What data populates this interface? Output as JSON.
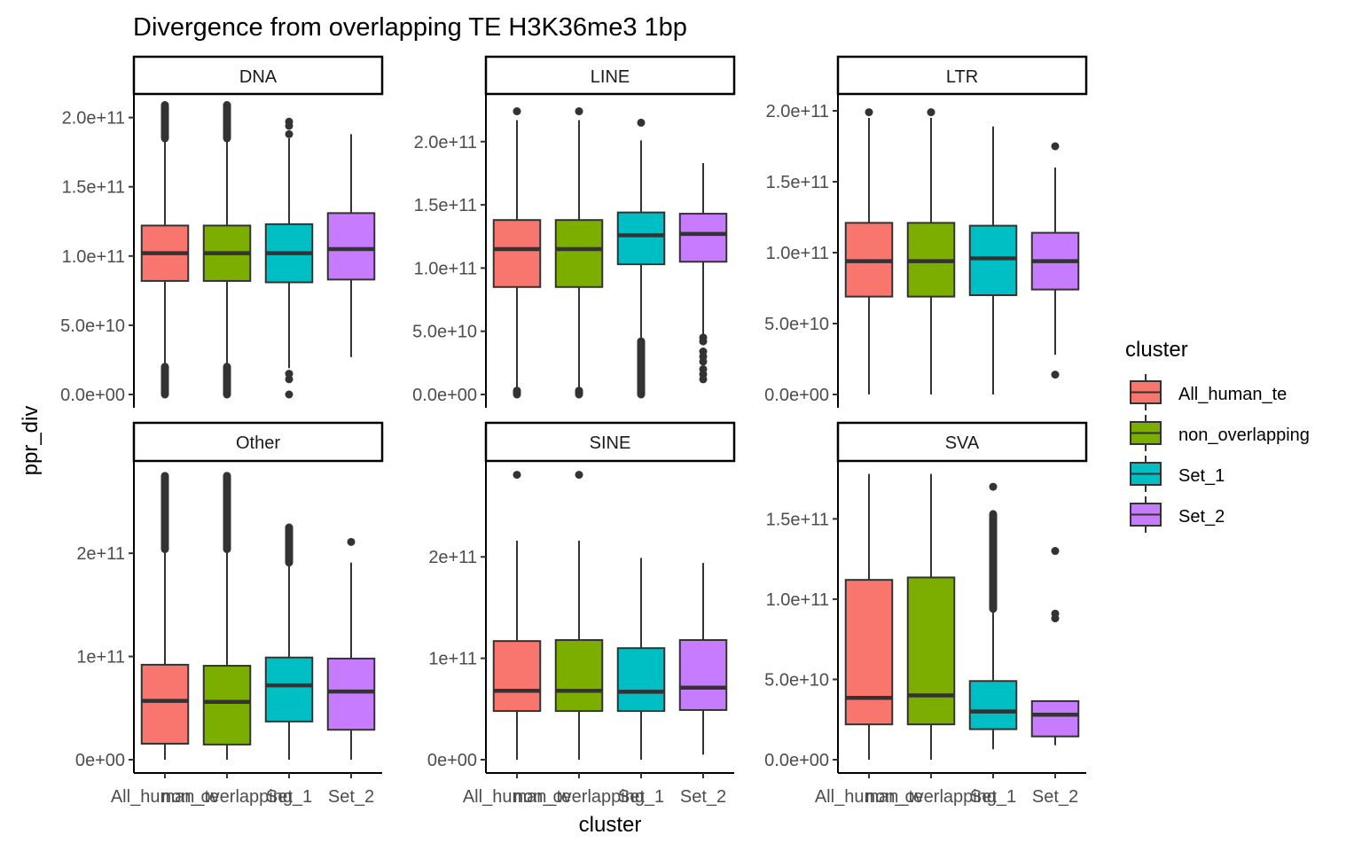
{
  "chart_data": {
    "type": "boxplot",
    "title": "Divergence from overlapping TE H3K36me3 1bp",
    "xlabel": "cluster",
    "ylabel": "ppr_div",
    "categories": [
      "All_human_te",
      "non_overlapping",
      "Set_1",
      "Set_2"
    ],
    "colors": {
      "All_human_te": "#F8766D",
      "non_overlapping": "#7CAE00",
      "Set_1": "#00BFC4",
      "Set_2": "#C77CFF"
    },
    "legend": {
      "title": "cluster",
      "position": "right",
      "items": [
        "All_human_te",
        "non_overlapping",
        "Set_1",
        "Set_2"
      ]
    },
    "grid": false,
    "facets": [
      {
        "name": "DNA",
        "ylim": [
          0,
          210000000000.0
        ],
        "yticks": [
          0,
          50000000000.0,
          100000000000.0,
          150000000000.0,
          200000000000.0
        ],
        "ytick_labels": [
          "0.0e+00",
          "5.0e+10",
          "1.0e+11",
          "1.5e+11",
          "2.0e+11"
        ],
        "boxes": [
          {
            "cat": "All_human_te",
            "lw": 21000000000.0,
            "q1": 82000000000.0,
            "med": 102000000000.0,
            "q3": 122000000000.0,
            "uw": 183000000000.0,
            "out_lo": [
              0,
              20000000000.0
            ],
            "out_hi": [
              185000000000.0,
              209000000000.0
            ]
          },
          {
            "cat": "non_overlapping",
            "lw": 21000000000.0,
            "q1": 82000000000.0,
            "med": 102000000000.0,
            "q3": 122000000000.0,
            "uw": 183000000000.0,
            "out_lo": [
              0,
              20000000000.0
            ],
            "out_hi": [
              185000000000.0,
              209000000000.0
            ]
          },
          {
            "cat": "Set_1",
            "lw": 19000000000.0,
            "q1": 81000000000.0,
            "med": 102000000000.0,
            "q3": 123000000000.0,
            "uw": 185000000000.0,
            "out_pts": [
              0,
              11000000000.0,
              15000000000.0,
              188000000000.0,
              194000000000.0,
              197000000000.0
            ]
          },
          {
            "cat": "Set_2",
            "lw": 27000000000.0,
            "q1": 83000000000.0,
            "med": 105000000000.0,
            "q3": 131000000000.0,
            "uw": 188000000000.0,
            "out_pts": []
          }
        ]
      },
      {
        "name": "LINE",
        "ylim": [
          0,
          230000000000.0
        ],
        "yticks": [
          0,
          50000000000.0,
          100000000000.0,
          150000000000.0,
          200000000000.0
        ],
        "ytick_labels": [
          "0.0e+00",
          "5.0e+10",
          "1.0e+11",
          "1.5e+11",
          "2.0e+11"
        ],
        "boxes": [
          {
            "cat": "All_human_te",
            "lw": 4000000000.0,
            "q1": 85000000000.0,
            "med": 115000000000.0,
            "q3": 138000000000.0,
            "uw": 217000000000.0,
            "out_lo": [
              0,
              3000000000.0
            ],
            "out_pts": [
              224000000000.0
            ]
          },
          {
            "cat": "non_overlapping",
            "lw": 4000000000.0,
            "q1": 85000000000.0,
            "med": 115000000000.0,
            "q3": 138000000000.0,
            "uw": 217000000000.0,
            "out_lo": [
              0,
              3000000000.0
            ],
            "out_pts": [
              224000000000.0
            ]
          },
          {
            "cat": "Set_1",
            "lw": 44000000000.0,
            "q1": 103000000000.0,
            "med": 126000000000.0,
            "q3": 144000000000.0,
            "uw": 201000000000.0,
            "out_lo": [
              0,
              42000000000.0
            ],
            "out_pts": [
              215000000000.0
            ]
          },
          {
            "cat": "Set_2",
            "lw": 47000000000.0,
            "q1": 105000000000.0,
            "med": 127000000000.0,
            "q3": 143000000000.0,
            "uw": 183000000000.0,
            "out_pts": [
              12000000000.0,
              16000000000.0,
              20000000000.0,
              26000000000.0,
              30000000000.0,
              34000000000.0,
              42000000000.0,
              45000000000.0
            ]
          }
        ]
      },
      {
        "name": "LTR",
        "ylim": [
          0,
          205000000000.0
        ],
        "yticks": [
          0,
          50000000000.0,
          100000000000.0,
          150000000000.0,
          200000000000.0
        ],
        "ytick_labels": [
          "0.0e+00",
          "5.0e+10",
          "1.0e+11",
          "1.5e+11",
          "2.0e+11"
        ],
        "boxes": [
          {
            "cat": "All_human_te",
            "lw": 0,
            "q1": 69000000000.0,
            "med": 94000000000.0,
            "q3": 121000000000.0,
            "uw": 195000000000.0,
            "out_pts": [
              199000000000.0
            ]
          },
          {
            "cat": "non_overlapping",
            "lw": 0,
            "q1": 69000000000.0,
            "med": 94000000000.0,
            "q3": 121000000000.0,
            "uw": 195000000000.0,
            "out_pts": [
              199000000000.0
            ]
          },
          {
            "cat": "Set_1",
            "lw": 0,
            "q1": 70000000000.0,
            "med": 96000000000.0,
            "q3": 119000000000.0,
            "uw": 189000000000.0,
            "out_pts": []
          },
          {
            "cat": "Set_2",
            "lw": 28000000000.0,
            "q1": 74000000000.0,
            "med": 94000000000.0,
            "q3": 114000000000.0,
            "uw": 160000000000.0,
            "out_pts": [
              14000000000.0,
              175000000000.0
            ]
          }
        ]
      },
      {
        "name": "Other",
        "ylim": [
          0,
          280000000000.0
        ],
        "yticks": [
          0,
          100000000000.0,
          200000000000.0
        ],
        "ytick_labels": [
          "0e+00",
          "1e+11",
          "2e+11"
        ],
        "boxes": [
          {
            "cat": "All_human_te",
            "lw": 0,
            "q1": 15500000000.0,
            "med": 57000000000.0,
            "q3": 92000000000.0,
            "uw": 202000000000.0,
            "out_lo": [
              204000000000.0,
              275000000000.0
            ]
          },
          {
            "cat": "non_overlapping",
            "lw": 0,
            "q1": 14700000000.0,
            "med": 56000000000.0,
            "q3": 91000000000.0,
            "uw": 202000000000.0,
            "out_lo": [
              204000000000.0,
              275000000000.0
            ]
          },
          {
            "cat": "Set_1",
            "lw": 0,
            "q1": 37000000000.0,
            "med": 72000000000.0,
            "q3": 99000000000.0,
            "uw": 190000000000.0,
            "out_lo": [
              191000000000.0,
              225000000000.0
            ]
          },
          {
            "cat": "Set_2",
            "lw": 0,
            "q1": 29000000000.0,
            "med": 66000000000.0,
            "q3": 98000000000.0,
            "uw": 191000000000.0,
            "out_pts": [
              211000000000.0
            ]
          }
        ]
      },
      {
        "name": "SINE",
        "ylim": [
          0,
          285000000000.0
        ],
        "yticks": [
          0,
          100000000000.0,
          200000000000.0
        ],
        "ytick_labels": [
          "0e+00",
          "1e+11",
          "2e+11"
        ],
        "boxes": [
          {
            "cat": "All_human_te",
            "lw": 0,
            "q1": 48000000000.0,
            "med": 68000000000.0,
            "q3": 117000000000.0,
            "uw": 216000000000.0,
            "out_pts": [
              281000000000.0
            ]
          },
          {
            "cat": "non_overlapping",
            "lw": 0,
            "q1": 48000000000.0,
            "med": 68000000000.0,
            "q3": 118000000000.0,
            "uw": 216000000000.0,
            "out_pts": [
              281000000000.0
            ]
          },
          {
            "cat": "Set_1",
            "lw": 0,
            "q1": 48000000000.0,
            "med": 67000000000.0,
            "q3": 110000000000.0,
            "uw": 199000000000.0,
            "out_pts": []
          },
          {
            "cat": "Set_2",
            "lw": 5000000000.0,
            "q1": 49000000000.0,
            "med": 71000000000.0,
            "q3": 118000000000.0,
            "uw": 194000000000.0,
            "out_pts": []
          }
        ]
      },
      {
        "name": "SVA",
        "ylim": [
          0,
          180000000000.0
        ],
        "yticks": [
          0,
          50000000000.0,
          100000000000.0,
          150000000000.0
        ],
        "ytick_labels": [
          "0.0e+00",
          "5.0e+10",
          "1.0e+11",
          "1.5e+11"
        ],
        "boxes": [
          {
            "cat": "All_human_te",
            "lw": 0,
            "q1": 22000000000.0,
            "med": 38500000000.0,
            "q3": 112000000000.0,
            "uw": 178000000000.0,
            "out_pts": []
          },
          {
            "cat": "non_overlapping",
            "lw": 0,
            "q1": 22000000000.0,
            "med": 40000000000.0,
            "q3": 113500000000.0,
            "uw": 178000000000.0,
            "out_pts": []
          },
          {
            "cat": "Set_1",
            "lw": 6500000000.0,
            "q1": 19000000000.0,
            "med": 30000000000.0,
            "q3": 49000000000.0,
            "uw": 92000000000.0,
            "out_lo": [
              94000000000.0,
              153000000000.0
            ],
            "out_pts": [
              170000000000.0
            ]
          },
          {
            "cat": "Set_2",
            "lw": 9000000000.0,
            "q1": 14500000000.0,
            "med": 28000000000.0,
            "q3": 36500000000.0,
            "uw": 36500000000.0,
            "out_pts": [
              88000000000.0,
              91000000000.0,
              130000000000.0
            ]
          }
        ]
      }
    ]
  },
  "x_tick_labels": [
    "All_human_te",
    "non_overlapping",
    "Set_1",
    "Set_2"
  ]
}
